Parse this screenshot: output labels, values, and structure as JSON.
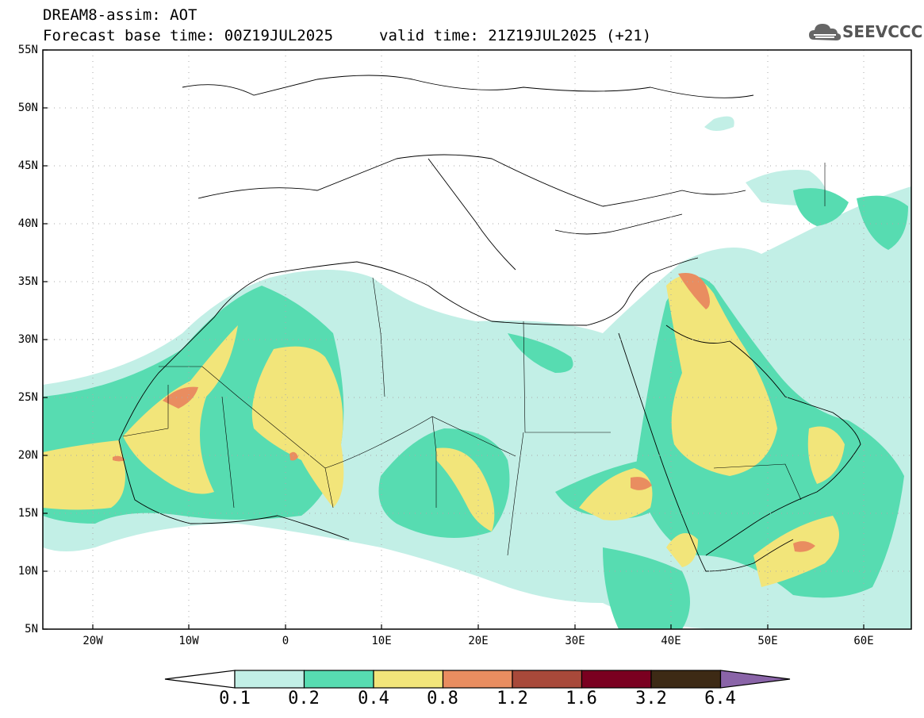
{
  "header": {
    "title_line1": "DREAM8-assim: AOT",
    "title_line2": "Forecast base time: 00Z19JUL2025",
    "valid_time": "valid time: 21Z19JUL2025 (+21)",
    "logo_text": "SEEVCCC"
  },
  "map": {
    "lat_labels": [
      "55N",
      "50N",
      "45N",
      "40N",
      "35N",
      "30N",
      "25N",
      "20N",
      "15N",
      "10N",
      "5N"
    ],
    "lon_labels": [
      "20W",
      "10W",
      "0",
      "10E",
      "20E",
      "30E",
      "40E",
      "50E",
      "60E"
    ]
  },
  "colorbar": {
    "labels": [
      "0.1",
      "0.2",
      "0.4",
      "0.8",
      "1.2",
      "1.6",
      "3.2",
      "6.4"
    ],
    "colors": [
      "#ffffff",
      "#c2efe6",
      "#57dcb1",
      "#f2e57a",
      "#e98d60",
      "#a8493a",
      "#7a0020",
      "#3d2a15",
      "#8a64a8"
    ]
  }
}
